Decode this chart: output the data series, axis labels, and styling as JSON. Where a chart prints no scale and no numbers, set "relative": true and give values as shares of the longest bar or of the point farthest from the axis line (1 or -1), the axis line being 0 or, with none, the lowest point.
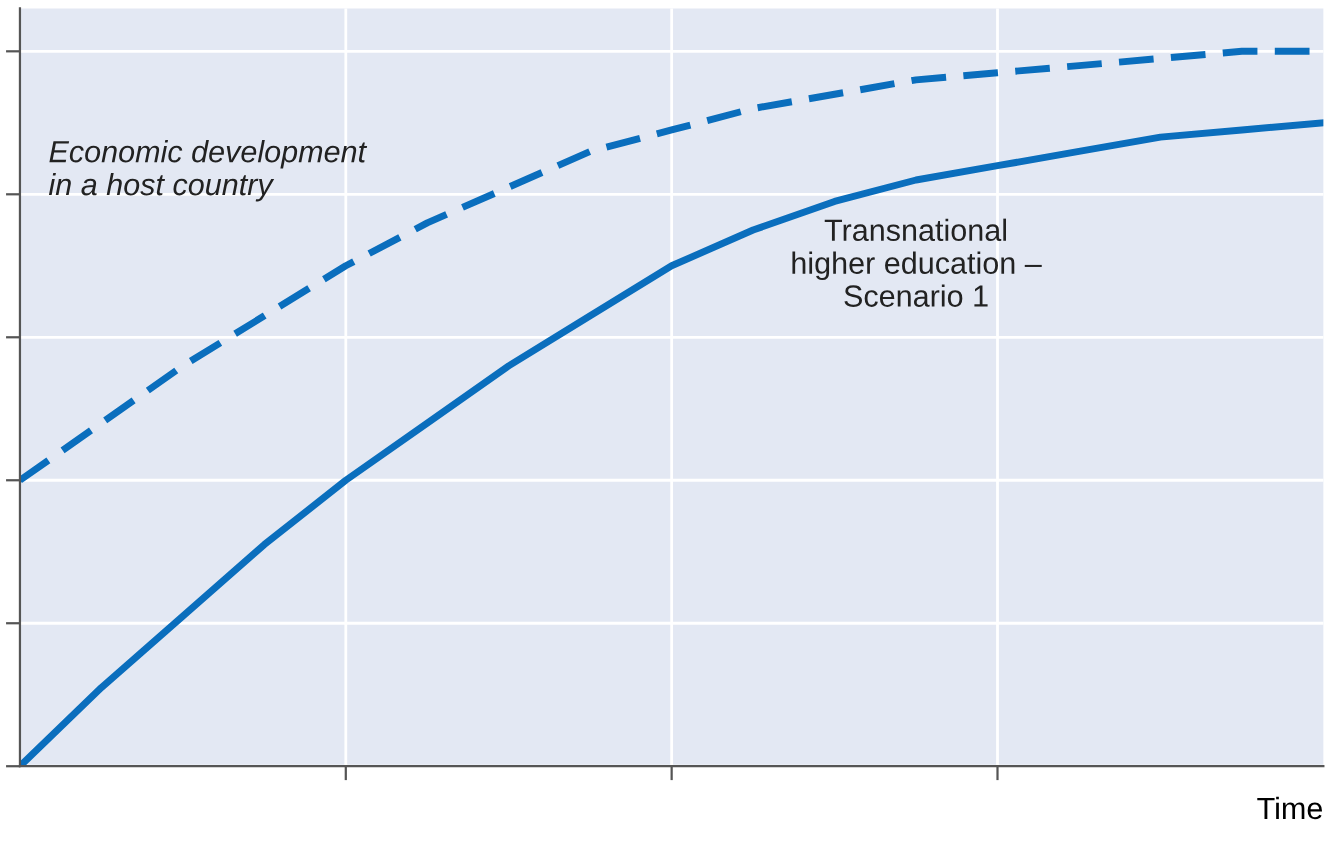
{
  "chart_data": {
    "type": "line",
    "relative": true,
    "xlabel": "Time",
    "grid": true,
    "tick_labels": false,
    "categories": [
      null,
      null,
      null,
      null,
      null,
      null,
      null,
      null,
      null,
      null,
      null,
      null,
      null,
      null,
      null,
      null,
      null
    ],
    "series": [
      {
        "name": "Economic development\nin a host country",
        "color": "#0a6ebd",
        "line_style": "dashed",
        "values": [
          0.4,
          0.48,
          0.56,
          0.63,
          0.7,
          0.76,
          0.81,
          0.86,
          0.89,
          0.92,
          0.94,
          0.96,
          0.97,
          0.98,
          0.99,
          1.0,
          1.0
        ]
      },
      {
        "name": "Transnational\nhigher education –\nScenario 1",
        "color": "#0a6ebd",
        "line_style": "solid",
        "values": [
          0,
          0.11,
          0.21,
          0.31,
          0.4,
          0.48,
          0.56,
          0.63,
          0.7,
          0.75,
          0.79,
          0.82,
          0.84,
          0.86,
          0.88,
          0.89,
          0.9
        ]
      }
    ]
  }
}
